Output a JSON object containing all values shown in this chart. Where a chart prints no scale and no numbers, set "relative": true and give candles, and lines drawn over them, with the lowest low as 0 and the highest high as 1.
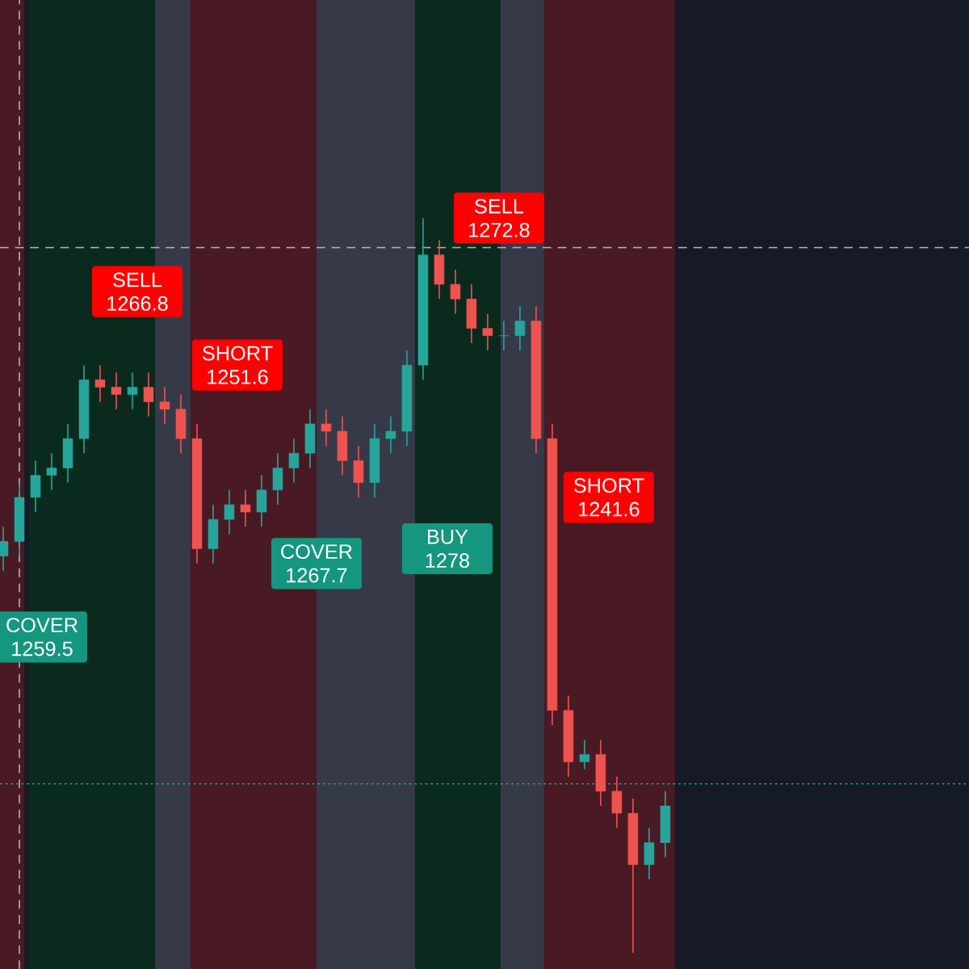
{
  "chart_data": {
    "type": "candlestick",
    "relative": true,
    "categories": [
      null,
      null,
      null,
      null,
      null,
      null,
      null,
      null,
      null,
      null,
      null,
      null,
      null,
      null,
      null,
      null,
      null,
      null,
      null,
      null,
      null,
      null,
      null,
      null,
      null,
      null,
      null,
      null,
      null,
      null,
      null,
      null,
      null,
      null,
      null,
      null,
      null,
      null,
      null,
      null,
      null,
      null
    ],
    "ohlc": [
      [
        0.54,
        0.58,
        0.52,
        0.56
      ],
      [
        0.56,
        0.64,
        0.54,
        0.62
      ],
      [
        0.62,
        0.67,
        0.6,
        0.65
      ],
      [
        0.65,
        0.68,
        0.63,
        0.66
      ],
      [
        0.66,
        0.72,
        0.64,
        0.7
      ],
      [
        0.7,
        0.8,
        0.68,
        0.78
      ],
      [
        0.78,
        0.8,
        0.75,
        0.77
      ],
      [
        0.77,
        0.79,
        0.74,
        0.76
      ],
      [
        0.76,
        0.79,
        0.74,
        0.77
      ],
      [
        0.77,
        0.79,
        0.73,
        0.75
      ],
      [
        0.75,
        0.77,
        0.72,
        0.74
      ],
      [
        0.74,
        0.76,
        0.68,
        0.7
      ],
      [
        0.7,
        0.72,
        0.53,
        0.55
      ],
      [
        0.55,
        0.61,
        0.53,
        0.59
      ],
      [
        0.59,
        0.63,
        0.57,
        0.61
      ],
      [
        0.61,
        0.63,
        0.58,
        0.6
      ],
      [
        0.6,
        0.65,
        0.58,
        0.63
      ],
      [
        0.63,
        0.68,
        0.61,
        0.66
      ],
      [
        0.66,
        0.7,
        0.64,
        0.68
      ],
      [
        0.68,
        0.74,
        0.66,
        0.72
      ],
      [
        0.72,
        0.74,
        0.69,
        0.71
      ],
      [
        0.71,
        0.73,
        0.65,
        0.67
      ],
      [
        0.67,
        0.69,
        0.62,
        0.64
      ],
      [
        0.64,
        0.72,
        0.62,
        0.7
      ],
      [
        0.7,
        0.73,
        0.68,
        0.71
      ],
      [
        0.71,
        0.82,
        0.69,
        0.8
      ],
      [
        0.8,
        1,
        0.78,
        0.95
      ],
      [
        0.95,
        0.97,
        0.89,
        0.91
      ],
      [
        0.91,
        0.93,
        0.87,
        0.89
      ],
      [
        0.89,
        0.91,
        0.83,
        0.85
      ],
      [
        0.85,
        0.87,
        0.82,
        0.84
      ],
      [
        0.84,
        0.86,
        0.82,
        0.84
      ],
      [
        0.84,
        0.88,
        0.82,
        0.86
      ],
      [
        0.86,
        0.88,
        0.68,
        0.7
      ],
      [
        0.7,
        0.72,
        0.31,
        0.33
      ],
      [
        0.33,
        0.35,
        0.24,
        0.26
      ],
      [
        0.26,
        0.29,
        0.25,
        0.27
      ],
      [
        0.27,
        0.29,
        0.2,
        0.22
      ],
      [
        0.22,
        0.24,
        0.17,
        0.19
      ],
      [
        0.19,
        0.21,
        0,
        0.12
      ],
      [
        0.12,
        0.17,
        0.1,
        0.15
      ],
      [
        0.15,
        0.22,
        0.13,
        0.2
      ]
    ],
    "ref_lines": [
      {
        "axis": "y",
        "value": 0.96,
        "color": "#b0b0b8",
        "line_style": "dashed"
      },
      {
        "axis": "y",
        "value": 0.23,
        "color": "#26a69a",
        "line_style": "dotted"
      }
    ],
    "annotations": [
      "SELL 1266.8",
      "SHORT 1251.6",
      "COVER 1267.7",
      "BUY 1278",
      "SELL 1272.8",
      "SHORT 1241.6",
      "COVER 1259.5"
    ]
  }
}
